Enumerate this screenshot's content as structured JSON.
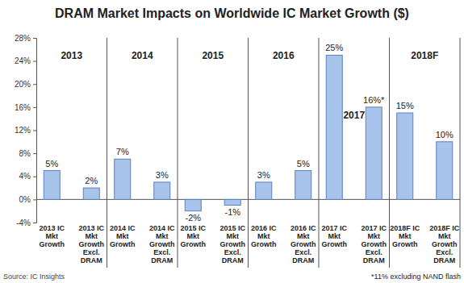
{
  "chart_data": {
    "type": "bar",
    "title": "DRAM Market Impacts on Worldwide IC Market Growth ($)",
    "categories": [
      "2013 IC\nMkt\nGrowth",
      "2013 IC\nMkt\nGrowth\nExcl.\nDRAM",
      "2014 IC\nMkt\nGrowth",
      "2014 IC\nMkt\nGrowth\nExcl.\nDRAM",
      "2015 IC\nMkt\nGrowth",
      "2015 IC\nMkt\nGrowth\nExcl.\nDRAM",
      "2016 IC\nMkt\nGrowth",
      "2016 IC\nMkt\nGrowth\nExcl.\nDRAM",
      "2017 IC\nMkt\nGrowth",
      "2017 IC\nMkt\nGrowth\nExcl.\nDRAM",
      "2018F IC\nMkt\nGrowth",
      "2018F IC\nMkt\nGrowth\nExcl.\nDRAM"
    ],
    "values": [
      5,
      2,
      7,
      3,
      -2,
      -1,
      3,
      5,
      25,
      16,
      15,
      10
    ],
    "value_labels": [
      "5%",
      "2%",
      "7%",
      "3%",
      "-2%",
      "-1%",
      "3%",
      "5%",
      "25%",
      "16%*",
      "15%",
      "10%"
    ],
    "annotations": [
      "2013",
      "2014",
      "2015",
      "2016",
      "2017",
      "2018F"
    ],
    "color": "#a9c4eb",
    "ylim": [
      -4,
      28
    ],
    "yticks": [
      {
        "value": -4,
        "label": "-4%"
      },
      {
        "value": 0,
        "label": "0%"
      },
      {
        "value": 4,
        "label": "4%"
      },
      {
        "value": 8,
        "label": "8%"
      },
      {
        "value": 12,
        "label": "12%"
      },
      {
        "value": 16,
        "label": "16%"
      },
      {
        "value": 20,
        "label": "20%"
      },
      {
        "value": 24,
        "label": "24%"
      },
      {
        "value": 28,
        "label": "28%"
      }
    ],
    "grid": false,
    "data_labels": true,
    "source": "Source: IC Insights",
    "footnote": "*11% excluding NAND flash"
  }
}
